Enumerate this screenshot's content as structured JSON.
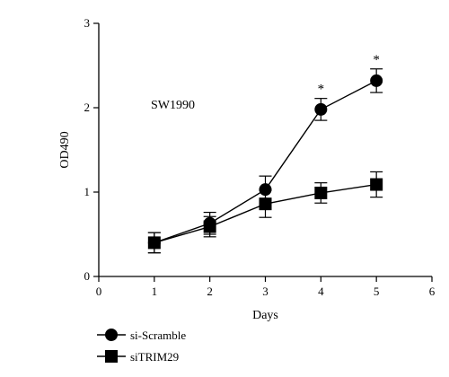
{
  "chart_data": {
    "type": "line",
    "title": "",
    "annotation": "SW1990",
    "xlabel": "Days",
    "ylabel": "OD490",
    "xlim": [
      0,
      6
    ],
    "ylim": [
      0,
      3
    ],
    "xticks": [
      0,
      1,
      2,
      3,
      4,
      5,
      6
    ],
    "yticks": [
      0,
      1,
      2,
      3
    ],
    "x": [
      1,
      2,
      3,
      4,
      5
    ],
    "series": [
      {
        "name": "si-Scramble",
        "marker": "circle",
        "values": [
          0.4,
          0.63,
          1.03,
          1.98,
          2.32
        ],
        "errors": [
          0.12,
          0.13,
          0.16,
          0.13,
          0.14
        ],
        "significance": [
          "",
          "",
          "",
          "*",
          "*"
        ]
      },
      {
        "name": "siTRIM29",
        "marker": "square",
        "values": [
          0.4,
          0.59,
          0.86,
          0.99,
          1.09
        ],
        "errors": [
          0.12,
          0.12,
          0.16,
          0.12,
          0.15
        ],
        "significance": [
          "",
          "",
          "",
          "",
          ""
        ]
      }
    ],
    "grid": false,
    "legend": "bottom-left"
  }
}
